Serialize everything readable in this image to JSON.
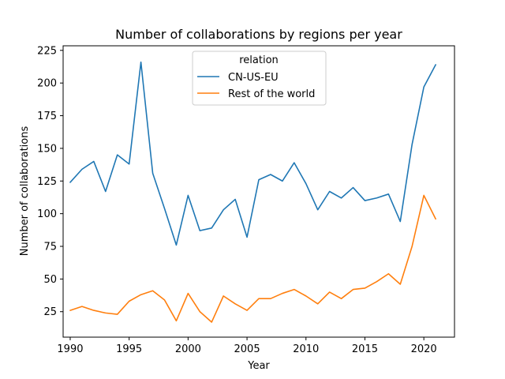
{
  "chart_data": {
    "type": "line",
    "title": "Number of collaborations by regions per year",
    "xlabel": "Year",
    "ylabel": "Number of collaborations",
    "xlim": [
      1989.4,
      2022.6
    ],
    "ylim": [
      5.5,
      228.5
    ],
    "x_ticks": [
      1990,
      1995,
      2000,
      2005,
      2010,
      2015,
      2020
    ],
    "y_ticks": [
      25,
      50,
      75,
      100,
      125,
      150,
      175,
      200,
      225
    ],
    "grid": false,
    "legend": {
      "title": "relation",
      "position": "top-center"
    },
    "x": [
      1990,
      1991,
      1992,
      1993,
      1994,
      1995,
      1996,
      1997,
      1998,
      1999,
      2000,
      2001,
      2002,
      2003,
      2004,
      2005,
      2006,
      2007,
      2008,
      2009,
      2010,
      2011,
      2012,
      2013,
      2014,
      2015,
      2016,
      2017,
      2018,
      2019,
      2020,
      2021
    ],
    "series": [
      {
        "name": "CN-US-EU",
        "color": "#1f77b4",
        "values": [
          124,
          134,
          140,
          117,
          145,
          138,
          216,
          131,
          104,
          76,
          114,
          87,
          89,
          103,
          111,
          82,
          126,
          130,
          125,
          139,
          123,
          103,
          117,
          112,
          120,
          110,
          112,
          115,
          94,
          153,
          197,
          214
        ]
      },
      {
        "name": "Rest of the world",
        "color": "#ff7f0e",
        "values": [
          26,
          29,
          26,
          24,
          23,
          33,
          38,
          41,
          34,
          18,
          39,
          25,
          17,
          37,
          31,
          26,
          35,
          35,
          39,
          42,
          37,
          31,
          40,
          35,
          42,
          43,
          48,
          54,
          46,
          75,
          114,
          96
        ]
      }
    ]
  }
}
